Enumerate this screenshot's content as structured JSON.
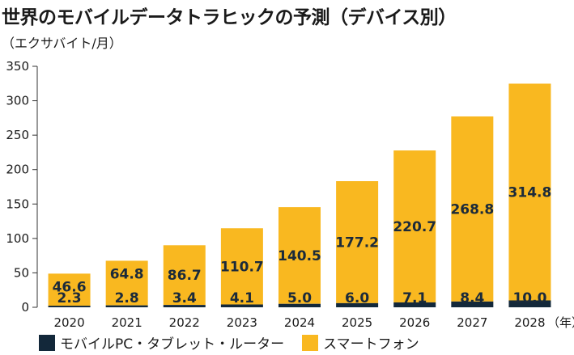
{
  "chart_data": {
    "type": "bar",
    "stacked": true,
    "title": "世界のモバイルデータトラヒックの予測（デバイス別）",
    "ylabel": "（エクサバイト/月）",
    "xlabel": "（年）",
    "categories": [
      "2020",
      "2021",
      "2022",
      "2023",
      "2024",
      "2025",
      "2026",
      "2027",
      "2028"
    ],
    "yticks": [
      "0",
      "50",
      "100",
      "150",
      "200",
      "250",
      "300",
      "350"
    ],
    "ylim": [
      0,
      350
    ],
    "series": [
      {
        "name": "モバイルPC・タブレット・ルーター",
        "values": [
          2.3,
          2.8,
          3.4,
          4.1,
          5.0,
          6.0,
          7.1,
          8.4,
          10.0
        ],
        "labels": [
          "2.3",
          "2.8",
          "3.4",
          "4.1",
          "5.0",
          "6.0",
          "7.1",
          "8.4",
          "10.0"
        ],
        "color": "#13283a"
      },
      {
        "name": "スマートフォン",
        "values": [
          46.6,
          64.8,
          86.7,
          110.7,
          140.5,
          177.2,
          220.7,
          268.8,
          314.8
        ],
        "labels": [
          "46.6",
          "64.8",
          "86.7",
          "110.7",
          "140.5",
          "177.2",
          "220.7",
          "268.8",
          "314.8"
        ],
        "color": "#f9b820"
      }
    ],
    "grid": false,
    "legend_position": "bottom-left"
  }
}
